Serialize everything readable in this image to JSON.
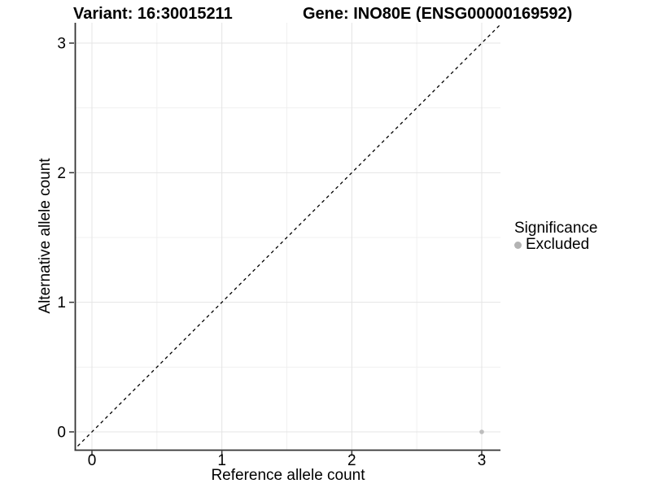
{
  "chart_data": {
    "type": "scatter",
    "title_left": "Variant: 16:30015211",
    "title_right": "Gene: INO80E (ENSG00000169592)",
    "xlabel": "Reference allele count",
    "ylabel": "Alternative allele count",
    "x_ticks": [
      0,
      1,
      2,
      3
    ],
    "y_ticks": [
      0,
      1,
      2,
      3
    ],
    "x_minor_ticks": [
      0.5,
      1.5,
      2.5
    ],
    "y_minor_ticks": [
      0.5,
      1.5,
      2.5
    ],
    "xlim": [
      -0.1253,
      3.144
    ],
    "ylim": [
      -0.1381,
      3.1569
    ],
    "grid": true,
    "points": [
      {
        "x": 3,
        "y": 0,
        "series": "Excluded"
      }
    ],
    "reference_line": {
      "type": "identity",
      "slope": 1,
      "intercept": 0,
      "style": "dashed"
    },
    "legend": {
      "title": "Significance",
      "position": "right",
      "items": [
        {
          "label": "Excluded",
          "color": "#b3b3b3"
        }
      ]
    },
    "colors": {
      "point_excluded": "#bdbdbd",
      "grid_major": "#e4e4e4",
      "grid_minor": "#f0f0f0",
      "axis": "#333333",
      "reference_line": "#000000",
      "text": "#000000"
    }
  }
}
